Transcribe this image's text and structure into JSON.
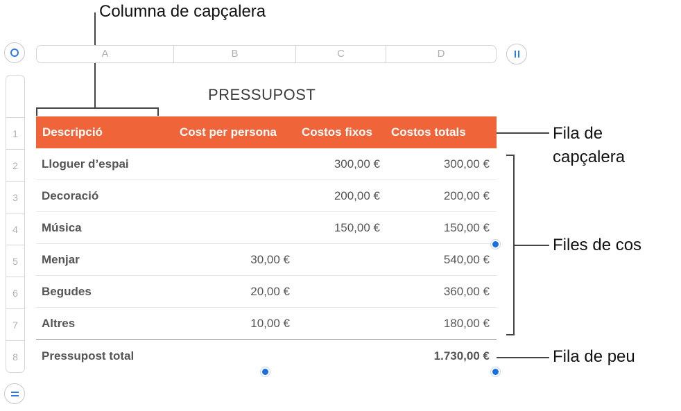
{
  "callouts": {
    "header_column": "Columna de capçalera",
    "header_row": [
      "Fila de",
      "capçalera"
    ],
    "body_rows": "Files de cos",
    "footer_row": "Fila de peu"
  },
  "column_labels": [
    "A",
    "B",
    "C",
    "D"
  ],
  "row_numbers": [
    "1",
    "2",
    "3",
    "4",
    "5",
    "6",
    "7",
    "8"
  ],
  "table": {
    "title": "PRESSUPOST",
    "headers": [
      "Descripció",
      "Cost per persona",
      "Costos fixos",
      "Costos totals"
    ],
    "rows": [
      [
        "Lloguer d’espai",
        "",
        "300,00 €",
        "300,00 €"
      ],
      [
        "Decoració",
        "",
        "200,00 €",
        "200,00 €"
      ],
      [
        "Música",
        "",
        "150,00 €",
        "150,00 €"
      ],
      [
        "Menjar",
        "30,00 €",
        "",
        "540,00 €"
      ],
      [
        "Begudes",
        "20,00 €",
        "",
        "360,00 €"
      ],
      [
        "Altres",
        "10,00 €",
        "",
        "180,00 €"
      ]
    ],
    "footer": [
      "Pressupost total",
      "",
      "",
      "1.730,00 €"
    ]
  },
  "colors": {
    "header_bg": "#f0643a",
    "handle": "#1a6fe0"
  },
  "icons": {
    "select_table": "circle-icon",
    "column_handle": "pause-icon",
    "row_handle": "equals-icon"
  }
}
